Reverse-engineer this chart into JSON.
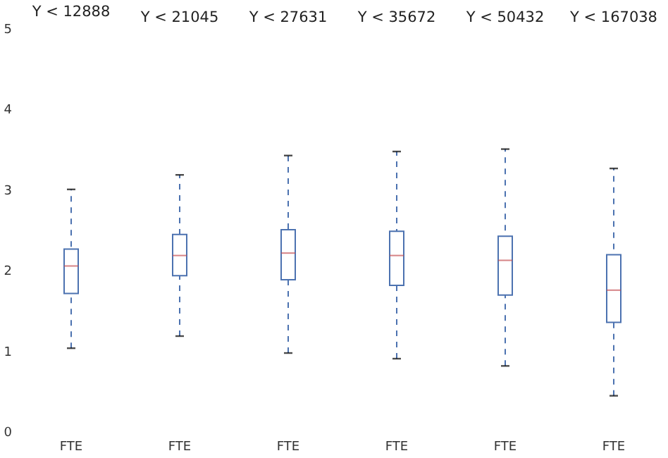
{
  "chart_data": [
    {
      "type": "box",
      "title": "Y < 12888",
      "categories": [
        "FTE"
      ],
      "ylim": [
        0,
        5
      ],
      "yticks": [
        0,
        1,
        2,
        3,
        4,
        5
      ],
      "boxes": [
        {
          "low": 1.03,
          "q1": 1.71,
          "median": 2.05,
          "q3": 2.26,
          "high": 3.0
        }
      ]
    },
    {
      "type": "box",
      "title": "Y < 21045",
      "categories": [
        "FTE"
      ],
      "ylim": [
        0,
        5
      ],
      "tick_labels": "x",
      "boxes": [
        {
          "low": 1.18,
          "q1": 1.93,
          "median": 2.18,
          "q3": 2.44,
          "high": 3.18
        }
      ]
    },
    {
      "type": "box",
      "title": "Y < 27631",
      "categories": [
        "FTE"
      ],
      "ylim": [
        0,
        5
      ],
      "tick_labels": "x",
      "boxes": [
        {
          "low": 0.97,
          "q1": 1.88,
          "median": 2.21,
          "q3": 2.5,
          "high": 3.42
        }
      ]
    },
    {
      "type": "box",
      "title": "Y < 35672",
      "categories": [
        "FTE"
      ],
      "ylim": [
        0,
        5
      ],
      "tick_labels": "x",
      "boxes": [
        {
          "low": 0.9,
          "q1": 1.81,
          "median": 2.18,
          "q3": 2.48,
          "high": 3.47
        }
      ]
    },
    {
      "type": "box",
      "title": "Y < 50432",
      "categories": [
        "FTE"
      ],
      "ylim": [
        0,
        5
      ],
      "tick_labels": "x",
      "boxes": [
        {
          "low": 0.81,
          "q1": 1.69,
          "median": 2.12,
          "q3": 2.42,
          "high": 3.5
        }
      ]
    },
    {
      "type": "box",
      "title": "Y < 167038",
      "categories": [
        "FTE"
      ],
      "ylim": [
        0,
        5
      ],
      "tick_labels": "x",
      "boxes": [
        {
          "low": 0.44,
          "q1": 1.35,
          "median": 1.75,
          "q3": 2.19,
          "high": 3.26
        }
      ]
    }
  ]
}
